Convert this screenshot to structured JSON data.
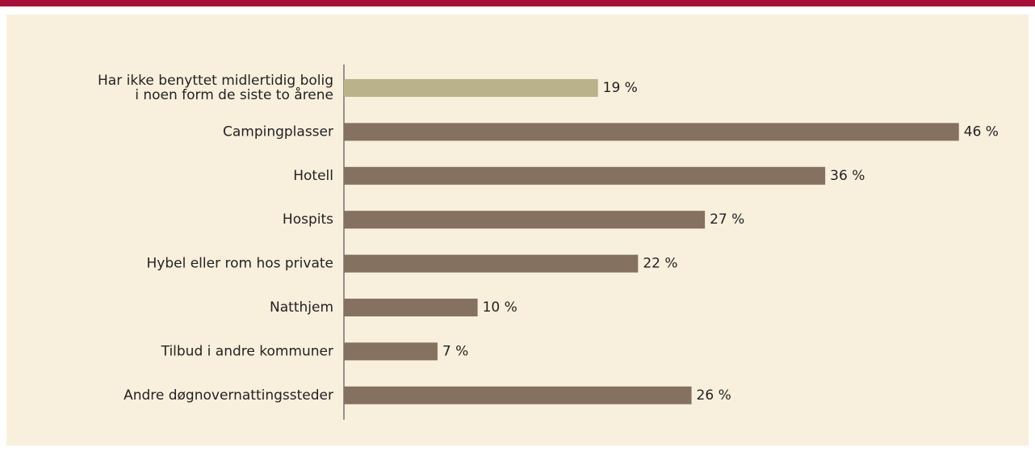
{
  "chart_data": {
    "type": "bar",
    "orientation": "horizontal",
    "categories": [
      "Har ikke benyttet midlertidig bolig\ni noen form de siste to årene",
      "Campingplasser",
      "Hotell",
      "Hospits",
      "Hybel eller rom hos private",
      "Natthjem",
      "Tilbud i andre kommuner",
      "Andre døgnovernattingssteder"
    ],
    "values": [
      19,
      46,
      36,
      27,
      22,
      10,
      7,
      26
    ],
    "value_labels": [
      "19 %",
      "46 %",
      "36 %",
      "27 %",
      "22 %",
      "10 %",
      "7 %",
      "26 %"
    ],
    "colors": [
      "#b9b28a",
      "#857160",
      "#857160",
      "#857160",
      "#857160",
      "#857160",
      "#857160",
      "#857160"
    ]
  }
}
